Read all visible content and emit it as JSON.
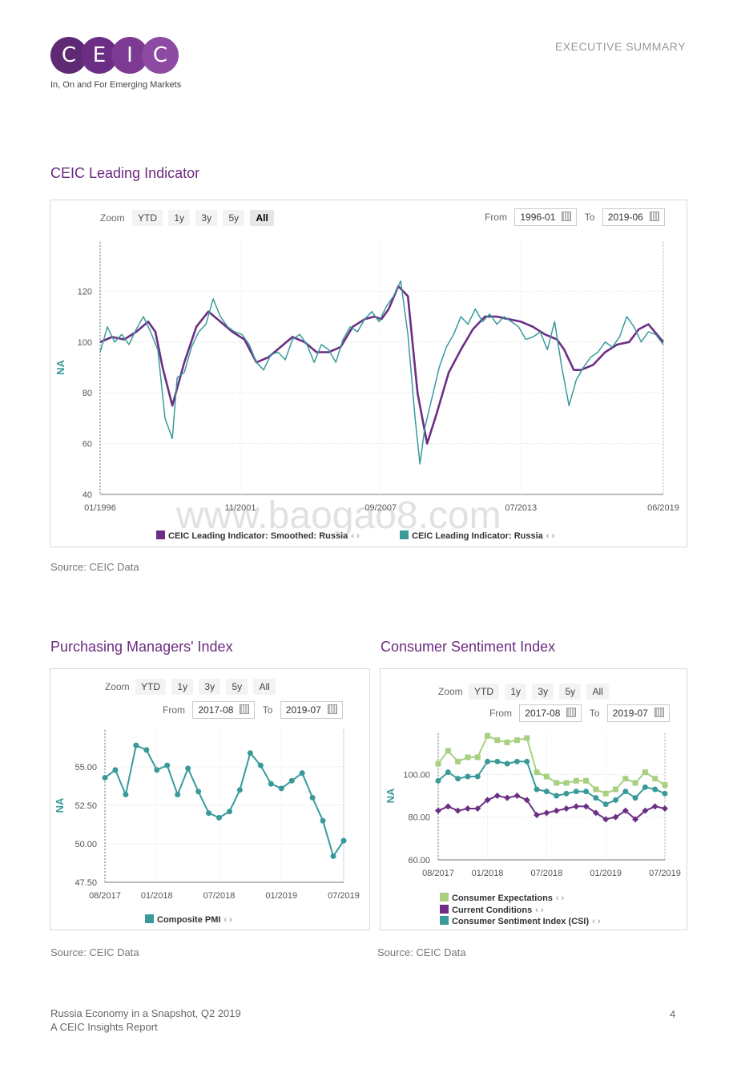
{
  "header": {
    "logo_letters": [
      "C",
      "E",
      "I",
      "C"
    ],
    "logo_colors": [
      "#5e2a73",
      "#6b2e84",
      "#7d3a93",
      "#8d4aa3"
    ],
    "tagline": "In, On and For Emerging Markets",
    "section_label": "EXECUTIVE SUMMARY"
  },
  "zoom": {
    "label": "Zoom",
    "buttons": [
      "YTD",
      "1y",
      "3y",
      "5y",
      "All"
    ],
    "from_label": "From",
    "to_label": "To"
  },
  "main_chart": {
    "section_title": "CEIC Leading Indicator",
    "from": "1996-01",
    "to": "2019-06",
    "source": "Source: CEIC Data",
    "legend": [
      {
        "label": "CEIC Leading Indicator: Smoothed: Russia",
        "color": "#6b2e84"
      },
      {
        "label": "CEIC Leading Indicator: Russia",
        "color": "#3a9a9a"
      }
    ]
  },
  "pmi": {
    "section_title": "Purchasing Managers' Index",
    "from": "2017-08",
    "to": "2019-07",
    "source": "Source: CEIC Data",
    "legend": [
      {
        "label": "Composite PMI",
        "color": "#3a9a9a"
      }
    ]
  },
  "csi": {
    "section_title": "Consumer Sentiment Index",
    "from": "2017-08",
    "to": "2019-07",
    "source": "Source: CEIC Data",
    "legend": [
      {
        "label": "Consumer Expectations",
        "color": "#a8d080"
      },
      {
        "label": "Current Conditions",
        "color": "#6b2e84"
      },
      {
        "label": "Consumer Sentiment Index (CSI)",
        "color": "#3a9a9a"
      }
    ]
  },
  "footer": {
    "line1": "Russia Economy in a Snapshot, Q2 2019",
    "line2": "A CEIC Insights Report",
    "page": "4"
  },
  "watermark": "www.baogao8.com",
  "chart_data": [
    {
      "id": "leading",
      "type": "line",
      "title": "CEIC Leading Indicator",
      "ylabel": "NA",
      "ylim": [
        40,
        140
      ],
      "yticks": [
        40,
        60,
        80,
        100,
        120
      ],
      "xlim": [
        1996.0,
        2019.42
      ],
      "xticks": [
        {
          "x": 1996.0,
          "label": "01/1996"
        },
        {
          "x": 2001.83,
          "label": "11/2001"
        },
        {
          "x": 2007.67,
          "label": "09/2007"
        },
        {
          "x": 2013.5,
          "label": "07/2013"
        },
        {
          "x": 2019.42,
          "label": "06/2019"
        }
      ],
      "series": [
        {
          "name": "CEIC Leading Indicator: Smoothed: Russia",
          "color": "#6b2e84",
          "x": [
            1996.0,
            1996.5,
            1997.0,
            1997.5,
            1998.0,
            1998.3,
            1998.6,
            1999.0,
            1999.5,
            2000.0,
            2000.5,
            2001.0,
            2001.5,
            2002.0,
            2002.5,
            2003.0,
            2003.5,
            2004.0,
            2004.5,
            2005.0,
            2005.5,
            2006.0,
            2006.5,
            2007.0,
            2007.4,
            2007.7,
            2008.0,
            2008.4,
            2008.8,
            2009.2,
            2009.6,
            2010.0,
            2010.5,
            2011.0,
            2011.5,
            2012.0,
            2012.5,
            2013.0,
            2013.5,
            2014.0,
            2014.5,
            2015.0,
            2015.3,
            2015.7,
            2016.0,
            2016.5,
            2017.0,
            2017.5,
            2018.0,
            2018.4,
            2018.8,
            2019.42
          ],
          "y": [
            100,
            102,
            101,
            104,
            108,
            104,
            90,
            75,
            92,
            106,
            112,
            108,
            104,
            101,
            92,
            94,
            98,
            102,
            100,
            96,
            96,
            98,
            106,
            109,
            110,
            109,
            113,
            122,
            118,
            80,
            60,
            72,
            88,
            97,
            105,
            110,
            110,
            109,
            108,
            106,
            103,
            101,
            97,
            89,
            89,
            91,
            96,
            99,
            100,
            105,
            107,
            100
          ]
        },
        {
          "name": "CEIC Leading Indicator: Russia",
          "color": "#3a9a9a",
          "x": [
            1996.0,
            1996.3,
            1996.6,
            1996.9,
            1997.2,
            1997.5,
            1997.8,
            1998.1,
            1998.4,
            1998.7,
            1999.0,
            1999.2,
            1999.5,
            1999.8,
            2000.1,
            2000.4,
            2000.7,
            2001.0,
            2001.3,
            2001.6,
            2001.9,
            2002.2,
            2002.5,
            2002.8,
            2003.1,
            2003.4,
            2003.7,
            2004.0,
            2004.3,
            2004.6,
            2004.9,
            2005.2,
            2005.5,
            2005.8,
            2006.1,
            2006.4,
            2006.7,
            2007.0,
            2007.3,
            2007.6,
            2007.9,
            2008.2,
            2008.5,
            2008.8,
            2009.1,
            2009.3,
            2009.5,
            2009.8,
            2010.1,
            2010.4,
            2010.7,
            2011.0,
            2011.3,
            2011.6,
            2011.9,
            2012.2,
            2012.5,
            2012.8,
            2013.1,
            2013.4,
            2013.7,
            2014.0,
            2014.3,
            2014.6,
            2014.9,
            2015.2,
            2015.5,
            2015.8,
            2016.1,
            2016.4,
            2016.7,
            2017.0,
            2017.3,
            2017.6,
            2017.9,
            2018.2,
            2018.5,
            2018.8,
            2019.1,
            2019.42
          ],
          "y": [
            96,
            106,
            100,
            103,
            99,
            105,
            110,
            104,
            97,
            70,
            62,
            86,
            88,
            98,
            104,
            107,
            117,
            110,
            106,
            104,
            103,
            99,
            92,
            89,
            95,
            96,
            93,
            101,
            103,
            99,
            92,
            99,
            97,
            92,
            101,
            106,
            104,
            109,
            112,
            108,
            114,
            118,
            124,
            103,
            70,
            52,
            66,
            78,
            90,
            98,
            103,
            110,
            107,
            113,
            108,
            111,
            107,
            110,
            108,
            106,
            101,
            102,
            104,
            97,
            108,
            90,
            75,
            85,
            90,
            94,
            96,
            100,
            98,
            102,
            110,
            106,
            100,
            104,
            103,
            99
          ]
        }
      ]
    },
    {
      "id": "pmi",
      "type": "line",
      "title": "Purchasing Managers' Index",
      "ylabel": "NA",
      "ylim": [
        47.5,
        57.5
      ],
      "yticks": [
        47.5,
        50.0,
        52.5,
        55.0
      ],
      "ytick_labels": [
        "47.50",
        "50.00",
        "52.50",
        "55.00"
      ],
      "xticks": [
        {
          "i": 0,
          "label": "08/2017"
        },
        {
          "i": 5,
          "label": "01/2018"
        },
        {
          "i": 11,
          "label": "07/2018"
        },
        {
          "i": 17,
          "label": "01/2019"
        },
        {
          "i": 23,
          "label": "07/2019"
        }
      ],
      "categories": [
        "08/2017",
        "09/2017",
        "10/2017",
        "11/2017",
        "12/2017",
        "01/2018",
        "02/2018",
        "03/2018",
        "04/2018",
        "05/2018",
        "06/2018",
        "07/2018",
        "08/2018",
        "09/2018",
        "10/2018",
        "11/2018",
        "12/2018",
        "01/2019",
        "02/2019",
        "03/2019",
        "04/2019",
        "05/2019",
        "06/2019",
        "07/2019"
      ],
      "series": [
        {
          "name": "Composite PMI",
          "color": "#3a9a9a",
          "values": [
            54.3,
            54.8,
            53.2,
            56.4,
            56.1,
            54.8,
            55.1,
            53.2,
            54.9,
            53.4,
            52.0,
            51.7,
            52.1,
            53.5,
            55.9,
            55.1,
            53.9,
            53.6,
            54.1,
            54.6,
            53.0,
            51.5,
            49.2,
            50.2
          ]
        }
      ]
    },
    {
      "id": "csi",
      "type": "line",
      "title": "Consumer Sentiment Index",
      "ylabel": "NA",
      "ylim": [
        60,
        120
      ],
      "yticks": [
        60,
        80,
        100
      ],
      "ytick_labels": [
        "60.00",
        "80.00",
        "100.00"
      ],
      "xticks": [
        {
          "i": 0,
          "label": "08/2017"
        },
        {
          "i": 5,
          "label": "01/2018"
        },
        {
          "i": 11,
          "label": "07/2018"
        },
        {
          "i": 17,
          "label": "01/2019"
        },
        {
          "i": 23,
          "label": "07/2019"
        }
      ],
      "categories": [
        "08/2017",
        "09/2017",
        "10/2017",
        "11/2017",
        "12/2017",
        "01/2018",
        "02/2018",
        "03/2018",
        "04/2018",
        "05/2018",
        "06/2018",
        "07/2018",
        "08/2018",
        "09/2018",
        "10/2018",
        "11/2018",
        "12/2018",
        "01/2019",
        "02/2019",
        "03/2019",
        "04/2019",
        "05/2019",
        "06/2019",
        "07/2019"
      ],
      "series": [
        {
          "name": "Consumer Expectations",
          "color": "#a8d080",
          "values": [
            105,
            111,
            106,
            108,
            108,
            118,
            116,
            115,
            116,
            117,
            101,
            99,
            96,
            96,
            97,
            97,
            93,
            91,
            93,
            98,
            96,
            101,
            98,
            95
          ]
        },
        {
          "name": "Consumer Sentiment Index (CSI)",
          "color": "#3a9a9a",
          "values": [
            97,
            101,
            98,
            99,
            99,
            106,
            106,
            105,
            106,
            106,
            93,
            92,
            90,
            91,
            92,
            92,
            89,
            86,
            88,
            92,
            89,
            94,
            93,
            91
          ]
        },
        {
          "name": "Current Conditions",
          "color": "#6b2e84",
          "values": [
            83,
            85,
            83,
            84,
            84,
            88,
            90,
            89,
            90,
            88,
            81,
            82,
            83,
            84,
            85,
            85,
            82,
            79,
            80,
            83,
            79,
            83,
            85,
            84
          ]
        }
      ]
    }
  ]
}
